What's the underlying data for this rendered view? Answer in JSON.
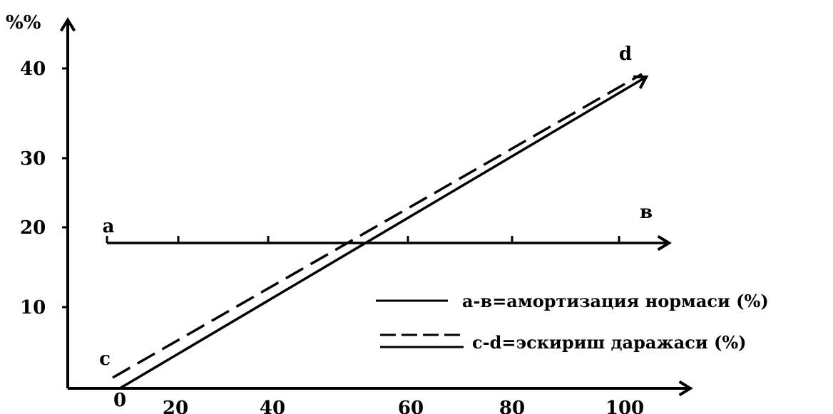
{
  "chart_data": {
    "type": "line",
    "ylabel": "%%",
    "xlabel": "",
    "title": "",
    "xlim": [
      0,
      110
    ],
    "ylim": [
      0,
      44
    ],
    "x_ticks": [
      "0",
      "20",
      "40",
      "60",
      "80",
      "100"
    ],
    "y_ticks": [
      "10",
      "20",
      "30",
      "40"
    ],
    "series": [
      {
        "name": "а-в=амортизация нормаси (%)",
        "style": "solid",
        "start_label": "а",
        "end_label": "в",
        "x": [
          -2.5,
          104
        ],
        "y": [
          18,
          18
        ],
        "tick_x": [
          -2.5,
          10,
          26,
          52,
          72,
          92
        ]
      },
      {
        "name": "с-d=эскириш даражаси (%)",
        "style": "dashed-solid-pair",
        "start_label": "с",
        "end_label": "d",
        "x": [
          0,
          106
        ],
        "y": [
          0,
          38.5
        ]
      }
    ],
    "legend": {
      "position": "right",
      "entries": [
        {
          "text": "а-в=амортизация нормаси (%)",
          "style": "solid"
        },
        {
          "text": "с-d=эскириш даражаси (%)",
          "style": "dashed-solid-pair"
        }
      ]
    },
    "grid": false
  }
}
